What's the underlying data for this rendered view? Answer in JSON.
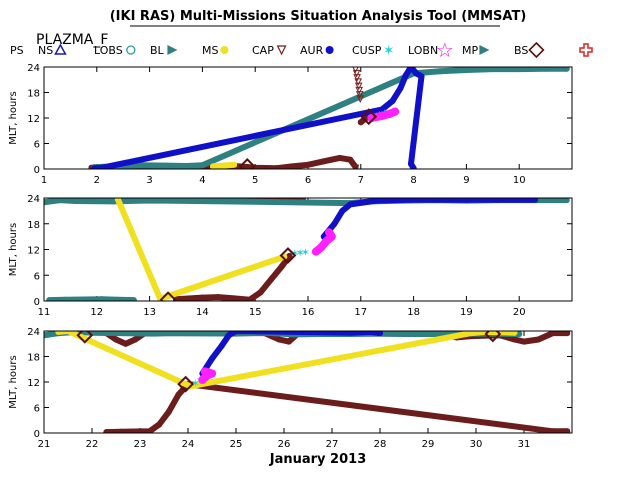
{
  "title": "(IKI RAS) Multi-Missions Situation Analysis Tool (MMSAT)",
  "subtitle": "PLAZMA_F",
  "xlabel_bottom": "January 2013",
  "legend": [
    {
      "label": "PS",
      "symbol": "none",
      "color": "#000000"
    },
    {
      "label": "NS",
      "symbol": "triangle-open",
      "color": "#1a1aa0"
    },
    {
      "label": "LOBS",
      "symbol": "circle-open",
      "color": "#2a9a9a"
    },
    {
      "label": "BL",
      "symbol": "flag",
      "color": "#2f8080"
    },
    {
      "label": "MS",
      "symbol": "dot",
      "color": "#f0e020"
    },
    {
      "label": "CAP",
      "symbol": "triangle-down-open",
      "color": "#7a1f1f"
    },
    {
      "label": "AUR",
      "symbol": "dot",
      "color": "#1010c8"
    },
    {
      "label": "CUSP",
      "symbol": "star-small",
      "color": "#20d0e0"
    },
    {
      "label": "LOBN",
      "symbol": "star-open",
      "color": "#e020e0"
    },
    {
      "label": "MP",
      "symbol": "flag",
      "color": "#2f8080"
    },
    {
      "label": "BS",
      "symbol": "diamond-open",
      "color": "#5a0f0f"
    },
    {
      "label": "",
      "symbol": "cross-open",
      "color": "#e02020"
    }
  ],
  "chart_data": [
    {
      "type": "scatter",
      "panel": 1,
      "xlim": [
        1,
        11
      ],
      "ylim": [
        0,
        24
      ],
      "ylabel": "MLT, hours",
      "xticks": [
        "1",
        "2",
        "3",
        "4",
        "5",
        "6",
        "7",
        "8",
        "9",
        "10"
      ],
      "yticks": [
        "0",
        "6",
        "12",
        "18",
        "24"
      ],
      "colors": {
        "ps": "#6b1c1c",
        "bl": "#2f8080",
        "ms": "#f0e020",
        "aur": "#1010c8",
        "cusp": "#20d0e0",
        "lobn": "#ff20ff",
        "bs": "#5a0f0f",
        "cap": "#7a1f1f"
      },
      "series": [
        {
          "role": "ps",
          "points": [
            [
              1.9,
              0.3
            ],
            [
              2.3,
              0.5
            ],
            [
              2.7,
              0.6
            ],
            [
              3.2,
              0.7
            ],
            [
              3.7,
              0.6
            ],
            [
              4.2,
              0.5
            ],
            [
              4.6,
              0.7
            ],
            [
              5.0,
              0.3
            ],
            [
              5.4,
              0.2
            ],
            [
              5.7,
              0.6
            ],
            [
              6.0,
              1.0
            ],
            [
              6.3,
              1.8
            ],
            [
              6.6,
              2.6
            ],
            [
              6.8,
              2.2
            ],
            [
              6.9,
              0.5
            ]
          ]
        },
        {
          "role": "ps",
          "points": [
            [
              7.0,
              11.0
            ],
            [
              7.1,
              12.0
            ]
          ]
        },
        {
          "role": "bl",
          "points": [
            [
              1.95,
              0.4
            ],
            [
              2.3,
              0.6
            ],
            [
              2.8,
              0.9
            ],
            [
              3.3,
              0.8
            ],
            [
              3.7,
              0.7
            ],
            [
              4.0,
              0.9
            ],
            [
              8.0,
              22.5
            ],
            [
              8.5,
              23.0
            ],
            [
              9.0,
              23.3
            ],
            [
              9.5,
              23.5
            ],
            [
              10.0,
              23.5
            ],
            [
              10.5,
              23.6
            ],
            [
              10.9,
              23.6
            ]
          ]
        },
        {
          "role": "ms",
          "points": [
            [
              4.2,
              0.6
            ],
            [
              4.4,
              0.8
            ],
            [
              4.6,
              1.0
            ]
          ]
        },
        {
          "role": "aur",
          "points": [
            [
              1.95,
              0.2
            ],
            [
              2.1,
              0.3
            ],
            [
              7.4,
              14.0
            ],
            [
              7.6,
              16.0
            ],
            [
              7.75,
              19.0
            ],
            [
              7.85,
              22.0
            ],
            [
              7.95,
              24.0
            ],
            [
              8.05,
              22.5
            ],
            [
              8.15,
              21.8
            ],
            [
              7.95,
              1.2
            ],
            [
              8.0,
              0.2
            ]
          ]
        },
        {
          "role": "cusp",
          "points": [
            [
              7.35,
              12.8
            ],
            [
              7.45,
              13.2
            ]
          ]
        },
        {
          "role": "lobn",
          "points": [
            [
              7.2,
              12.0
            ],
            [
              7.4,
              12.5
            ],
            [
              7.55,
              13.0
            ],
            [
              7.65,
              13.5
            ]
          ]
        },
        {
          "role": "bs",
          "points": [
            [
              4.85,
              0.6
            ],
            [
              7.15,
              12.3
            ]
          ]
        },
        {
          "role": "cap",
          "points": [
            [
              6.9,
              23.5
            ],
            [
              6.92,
              22.5
            ],
            [
              6.93,
              21.5
            ],
            [
              6.95,
              20.5
            ],
            [
              6.96,
              19.5
            ],
            [
              6.97,
              18.5
            ],
            [
              6.98,
              17.5
            ],
            [
              6.99,
              16.5
            ],
            [
              6.9,
              0.2
            ]
          ]
        }
      ]
    },
    {
      "type": "scatter",
      "panel": 2,
      "xlim": [
        11,
        21
      ],
      "ylim": [
        0,
        24
      ],
      "ylabel": "MLT, hours",
      "xticks": [
        "11",
        "12",
        "13",
        "14",
        "15",
        "16",
        "17",
        "18",
        "19",
        "20"
      ],
      "yticks": [
        "0",
        "6",
        "12",
        "18",
        "24"
      ],
      "colors": {
        "ps": "#6b1c1c",
        "bl": "#2f8080",
        "ms": "#f0e020",
        "aur": "#1010c8",
        "cusp": "#20d0e0",
        "lobn": "#ff20ff",
        "bs": "#5a0f0f",
        "cap": "#7a1f1f"
      },
      "series": [
        {
          "role": "ps",
          "points": [
            [
              13.5,
              0.4
            ],
            [
              14.0,
              0.8
            ],
            [
              14.3,
              0.9
            ],
            [
              14.6,
              0.6
            ],
            [
              14.9,
              0.3
            ],
            [
              15.1,
              2.0
            ],
            [
              15.3,
              5.0
            ],
            [
              15.5,
              8.0
            ],
            [
              15.65,
              10.5
            ]
          ]
        },
        {
          "role": "ps",
          "points": [
            [
              13.6,
              23.5
            ],
            [
              13.8,
              24.0
            ],
            [
              14.2,
              24.0
            ],
            [
              15.9,
              23.7
            ]
          ]
        },
        {
          "role": "bl",
          "points": [
            [
              11.0,
              23.0
            ],
            [
              11.3,
              23.5
            ],
            [
              11.6,
              23.3
            ],
            [
              12.3,
              23.2
            ],
            [
              12.9,
              23.4
            ],
            [
              13.3,
              23.4
            ],
            [
              16.8,
              22.8
            ],
            [
              17.2,
              23.2
            ],
            [
              17.8,
              23.4
            ],
            [
              18.4,
              23.5
            ],
            [
              19.0,
              23.4
            ],
            [
              19.6,
              23.5
            ],
            [
              20.2,
              23.5
            ],
            [
              20.9,
              23.5
            ]
          ]
        },
        {
          "role": "bl",
          "points": [
            [
              11.1,
              0.2
            ],
            [
              11.4,
              0.3
            ],
            [
              12.1,
              0.4
            ],
            [
              12.4,
              0.3
            ],
            [
              12.7,
              0.2
            ]
          ]
        },
        {
          "role": "ms",
          "points": [
            [
              12.4,
              23.7
            ],
            [
              13.2,
              0.5
            ],
            [
              15.55,
              10.3
            ]
          ]
        },
        {
          "role": "aur",
          "points": [
            [
              16.3,
              15.0
            ],
            [
              16.5,
              18.0
            ],
            [
              16.65,
              21.0
            ],
            [
              16.8,
              22.5
            ],
            [
              17.3,
              23.4
            ],
            [
              17.9,
              23.6
            ],
            [
              18.4,
              23.6
            ],
            [
              19.0,
              23.6
            ],
            [
              19.6,
              23.6
            ],
            [
              20.3,
              23.6
            ]
          ]
        },
        {
          "role": "cusp",
          "points": [
            [
              15.75,
              11.2
            ],
            [
              15.85,
              11.3
            ],
            [
              15.95,
              11.4
            ]
          ]
        },
        {
          "role": "lobn",
          "points": [
            [
              16.15,
              11.5
            ],
            [
              16.25,
              12.5
            ],
            [
              16.35,
              14.0
            ],
            [
              16.45,
              15.0
            ],
            [
              16.4,
              16.0
            ]
          ]
        },
        {
          "role": "bs",
          "points": [
            [
              13.35,
              0.3
            ],
            [
              15.62,
              10.6
            ]
          ]
        }
      ]
    },
    {
      "type": "scatter",
      "panel": 3,
      "xlim": [
        21,
        32
      ],
      "ylim": [
        0,
        24
      ],
      "ylabel": "MLT, hours",
      "xticks": [
        "21",
        "22",
        "23",
        "24",
        "25",
        "26",
        "27",
        "28",
        "29",
        "30",
        "31"
      ],
      "yticks": [
        "0",
        "6",
        "12",
        "18",
        "24"
      ],
      "colors": {
        "ps": "#6b1c1c",
        "bl": "#2f8080",
        "ms": "#f0e020",
        "aur": "#1010c8",
        "cusp": "#20d0e0",
        "lobn": "#ff20ff",
        "bs": "#5a0f0f",
        "cap": "#7a1f1f"
      },
      "series": [
        {
          "role": "ps",
          "points": [
            [
              22.3,
              23.5
            ],
            [
              22.5,
              22.0
            ],
            [
              22.7,
              21.0
            ],
            [
              22.9,
              22.0
            ],
            [
              23.1,
              23.5
            ],
            [
              25.6,
              23.5
            ],
            [
              25.9,
              22.0
            ],
            [
              26.1,
              21.5
            ],
            [
              26.3,
              23.5
            ],
            [
              29.3,
              23.3
            ],
            [
              29.6,
              22.5
            ],
            [
              29.9,
              22.8
            ],
            [
              30.5,
              23.0
            ],
            [
              30.8,
              22.0
            ],
            [
              31.0,
              21.5
            ],
            [
              31.3,
              22.0
            ],
            [
              31.6,
              23.5
            ],
            [
              31.9,
              23.5
            ]
          ]
        },
        {
          "role": "ps",
          "points": [
            [
              22.3,
              0.2
            ],
            [
              22.6,
              0.3
            ],
            [
              23.2,
              0.4
            ],
            [
              23.4,
              2.0
            ],
            [
              23.6,
              5.0
            ],
            [
              23.8,
              9.0
            ],
            [
              24.0,
              11.5
            ],
            [
              31.6,
              0.4
            ],
            [
              31.9,
              0.4
            ]
          ]
        },
        {
          "role": "bl",
          "points": [
            [
              21.0,
              23.0
            ],
            [
              21.3,
              23.5
            ],
            [
              21.7,
              23.8
            ],
            [
              22.0,
              23.6
            ],
            [
              23.3,
              23.4
            ],
            [
              23.6,
              23.5
            ],
            [
              25.0,
              23.4
            ],
            [
              25.6,
              23.6
            ],
            [
              26.2,
              23.2
            ],
            [
              26.8,
              23.3
            ],
            [
              27.4,
              23.3
            ],
            [
              28.0,
              23.4
            ],
            [
              28.6,
              23.3
            ],
            [
              29.2,
              23.3
            ],
            [
              29.8,
              23.4
            ],
            [
              30.4,
              23.4
            ],
            [
              30.9,
              23.3
            ]
          ]
        },
        {
          "role": "ms",
          "points": [
            [
              21.3,
              23.8
            ],
            [
              21.5,
              24.0
            ],
            [
              24.05,
              11.0
            ],
            [
              29.9,
              23.5
            ],
            [
              30.2,
              23.8
            ],
            [
              30.5,
              23.7
            ],
            [
              30.8,
              23.6
            ]
          ]
        },
        {
          "role": "aur",
          "points": [
            [
              24.3,
              14.0
            ],
            [
              24.5,
              17.5
            ],
            [
              24.7,
              20.5
            ],
            [
              24.85,
              23.0
            ],
            [
              25.0,
              24.0
            ],
            [
              27.4,
              23.6
            ],
            [
              27.8,
              23.8
            ],
            [
              28.0,
              23.5
            ]
          ]
        },
        {
          "role": "cusp",
          "points": [
            [
              24.15,
              11.8
            ],
            [
              24.25,
              12.5
            ]
          ]
        },
        {
          "role": "lobn",
          "points": [
            [
              24.3,
              12.5
            ],
            [
              24.4,
              13.5
            ],
            [
              24.5,
              14.0
            ],
            [
              24.35,
              14.5
            ]
          ]
        },
        {
          "role": "bs",
          "points": [
            [
              21.85,
              23.0
            ],
            [
              23.95,
              11.5
            ],
            [
              30.35,
              23.3
            ]
          ]
        }
      ]
    }
  ]
}
